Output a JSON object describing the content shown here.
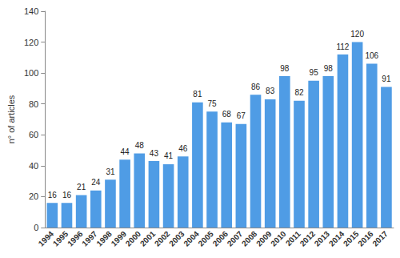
{
  "chart_data": {
    "type": "bar",
    "y_label": "n° of articles",
    "categories": [
      "1994",
      "1995",
      "1996",
      "1997",
      "1998",
      "1999",
      "2000",
      "2001",
      "2002",
      "2003",
      "2004",
      "2005",
      "2006",
      "2007",
      "2008",
      "2009",
      "2010",
      "2011",
      "2012",
      "2013",
      "2014",
      "2015",
      "2016",
      "2017"
    ],
    "values": [
      16,
      16,
      21,
      24,
      31,
      44,
      48,
      43,
      41,
      46,
      81,
      75,
      68,
      67,
      86,
      83,
      98,
      82,
      95,
      98,
      112,
      120,
      106,
      91
    ],
    "color": "#4f9ce5",
    "ylim": [
      0,
      140
    ],
    "yticks": [
      0,
      20,
      40,
      60,
      80,
      100,
      120,
      140
    ],
    "grid": false,
    "data_labels": true
  }
}
